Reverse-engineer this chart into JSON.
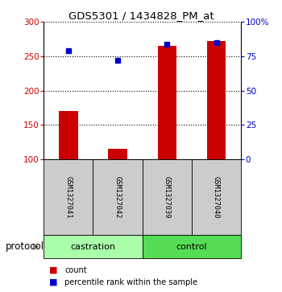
{
  "title": "GDS5301 / 1434828_PM_at",
  "samples": [
    "GSM1327041",
    "GSM1327042",
    "GSM1327039",
    "GSM1327040"
  ],
  "red_values": [
    170,
    115,
    265,
    272
  ],
  "blue_values": [
    258,
    244,
    268,
    270
  ],
  "red_base": 100,
  "ylim_left": [
    100,
    300
  ],
  "ylim_right": [
    0,
    100
  ],
  "left_ticks": [
    100,
    150,
    200,
    250,
    300
  ],
  "right_ticks": [
    0,
    25,
    50,
    75,
    100
  ],
  "right_tick_labels": [
    "0",
    "25",
    "50",
    "75",
    "100%"
  ],
  "left_color": "#cc0000",
  "right_color": "#0000cc",
  "bar_color": "#cc0000",
  "dot_color": "#0000cc",
  "bg_plot": "#ffffff",
  "bg_sample_box": "#cccccc",
  "bg_group_castration": "#aaffaa",
  "bg_group_control": "#55dd55",
  "legend_red": "count",
  "legend_blue": "percentile rank within the sample",
  "protocol_label": "protocol",
  "group_configs": [
    {
      "label": "castration",
      "start": 0,
      "end": 2
    },
    {
      "label": "control",
      "start": 2,
      "end": 4
    }
  ]
}
